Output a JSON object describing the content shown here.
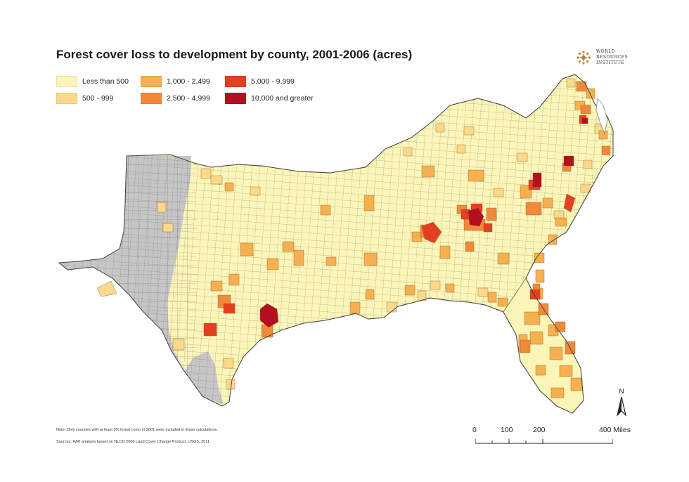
{
  "title": "Forest cover loss to development by county, 2001-2006 (acres)",
  "logo": {
    "lines": [
      "WORLD",
      "RESOURCES",
      "INSTITUTE"
    ],
    "color": "#b8823a"
  },
  "legend": {
    "items": [
      {
        "label": "Less than 500",
        "color": "#fbf6b8"
      },
      {
        "label": "500 - 999",
        "color": "#fad98a"
      },
      {
        "label": "1,000 - 2,499",
        "color": "#f7b04f"
      },
      {
        "label": "2,500 - 4,999",
        "color": "#f08a3a"
      },
      {
        "label": "5,000 - 9,999",
        "color": "#e34022"
      },
      {
        "label": "10,000 and greater",
        "color": "#b30f1f"
      }
    ]
  },
  "no_data_color": "#c6c6c6",
  "county_border_color": "#555555",
  "north": {
    "label": "N"
  },
  "scale": {
    "unit": "Miles",
    "ticks": [
      "0",
      "100",
      "200",
      "400 Miles"
    ]
  },
  "note": "Note:  Only counties with at least 5% forest cover in 2001 were included in these calculations.",
  "sources": "Sources:  WRI analysis based on NLCD 2006 Land Cover Change Product, USGS, 2011."
}
